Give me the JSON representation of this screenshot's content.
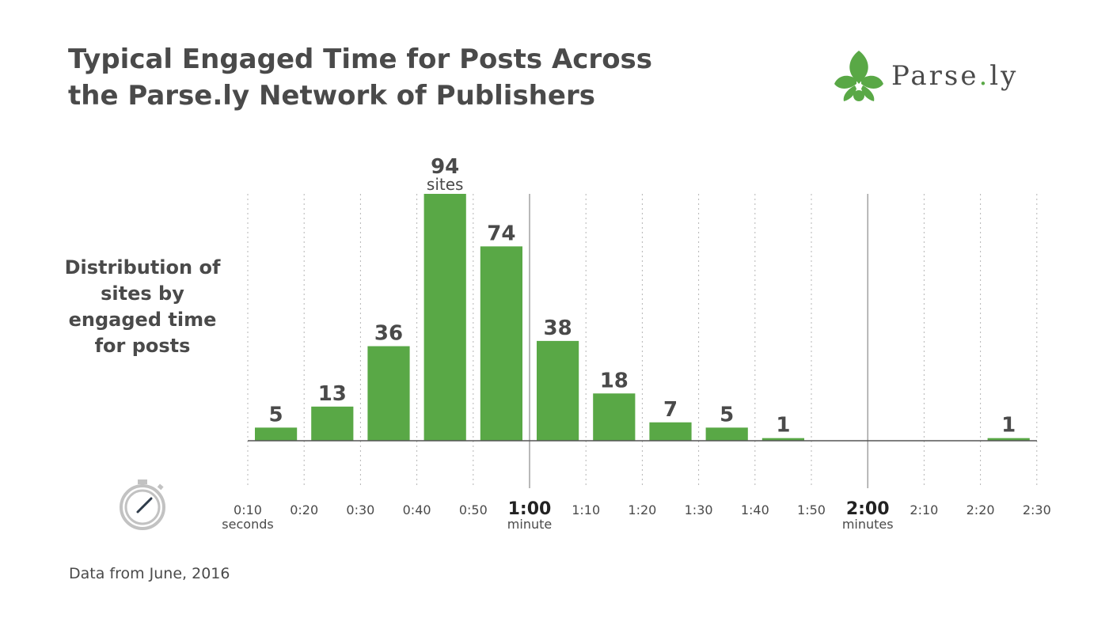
{
  "title": "Typical Engaged Time for Posts Across the Parse.ly Network of Publishers",
  "brand": {
    "name_a": "Parse",
    "name_dot": ".",
    "name_b": "ly",
    "logo_icon": "leaf-logo-icon",
    "color": "#59a846"
  },
  "side_label": "Distribution of sites by engaged time for posts",
  "source_note": "Data from June, 2016",
  "icon": "stopwatch-icon",
  "colors": {
    "bar": "#59a846",
    "text": "#4a4a4a",
    "grid": "#b5b5b5",
    "baseline": "#555555"
  },
  "chart_data": {
    "type": "bar",
    "categories": [
      "0:10–0:20",
      "0:20–0:30",
      "0:30–0:40",
      "0:40–0:50",
      "0:50–1:00",
      "1:00–1:10",
      "1:10–1:20",
      "1:20–1:30",
      "1:30–1:40",
      "1:40–1:50",
      "1:50–2:00",
      "2:00–2:10",
      "2:10–2:20",
      "2:20–2:30"
    ],
    "values": [
      5,
      13,
      36,
      94,
      74,
      38,
      18,
      7,
      5,
      1,
      0,
      0,
      0,
      1
    ],
    "value_labels": [
      "5",
      "13",
      "36",
      "94",
      "74",
      "38",
      "18",
      "7",
      "5",
      "1",
      "",
      "",
      "",
      "1"
    ],
    "peak_unit_label": "sites",
    "x_ticks": [
      "0:10",
      "0:20",
      "0:30",
      "0:40",
      "0:50",
      "1:00",
      "1:10",
      "1:20",
      "1:30",
      "1:40",
      "1:50",
      "2:00",
      "2:10",
      "2:20",
      "2:30"
    ],
    "x_tick_sublabels": [
      "seconds",
      "",
      "",
      "",
      "",
      "minute",
      "",
      "",
      "",
      "",
      "",
      "minutes",
      "",
      "",
      ""
    ],
    "emphasized_ticks": [
      "1:00",
      "2:00"
    ],
    "ylim": [
      0,
      94
    ],
    "grid": "vertical dotted"
  }
}
